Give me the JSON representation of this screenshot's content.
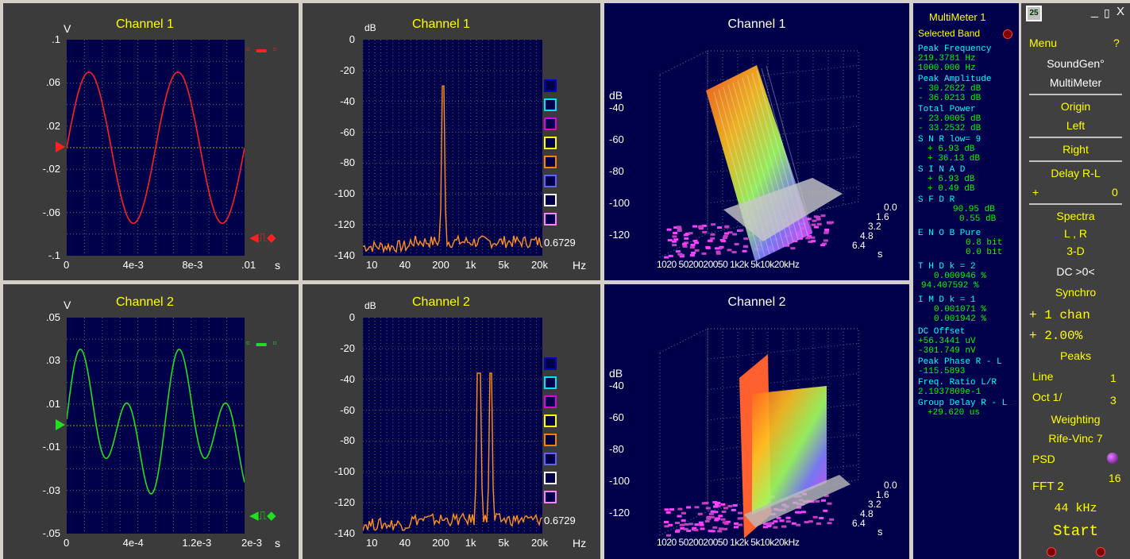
{
  "oscilloscope": [
    {
      "title": "Channel 1",
      "y_unit": "V",
      "x_unit": "s",
      "y_ticks": [
        ".1",
        ".06",
        ".02",
        "-.02",
        "-.06",
        "-.1"
      ],
      "x_ticks": [
        "0",
        "4e-3",
        "8e-3",
        ".01"
      ],
      "color": "#ff2020"
    },
    {
      "title": "Channel 2",
      "y_unit": "V",
      "x_unit": "s",
      "y_ticks": [
        ".05",
        ".03",
        ".01",
        "-.01",
        "-.03",
        "-.05"
      ],
      "x_ticks": [
        "0",
        "4e-4",
        "1.2e-3",
        "2e-3"
      ],
      "color": "#20e020"
    }
  ],
  "spectrum": [
    {
      "title": "Channel 1",
      "y_unit": "dB",
      "x_unit": "Hz",
      "y_ticks": [
        "0",
        "-20",
        "-40",
        "-60",
        "-80",
        "-100",
        "-120",
        "-140"
      ],
      "x_ticks": [
        "10",
        "40",
        "200",
        "1k",
        "5k",
        "20k"
      ],
      "value": "0.6729"
    },
    {
      "title": "Channel 2",
      "y_unit": "dB",
      "x_unit": "Hz",
      "y_ticks": [
        "0",
        "-20",
        "-40",
        "-60",
        "-80",
        "-100",
        "-120",
        "-140"
      ],
      "x_ticks": [
        "10",
        "40",
        "200",
        "1k",
        "5k",
        "20k"
      ],
      "value": "0.6729"
    }
  ],
  "waterfall": [
    {
      "title": "Channel 1",
      "y_unit": "dB",
      "y_ticks": [
        "-40",
        "-60",
        "-80",
        "-100",
        "-120"
      ],
      "x_ticks": "1020 5020020050 1k2k 5k10k20kHz",
      "z_ticks": [
        "0.0",
        "1.6",
        "3.2",
        "4.8",
        "6.4"
      ],
      "z_unit": "s"
    },
    {
      "title": "Channel 2",
      "y_unit": "dB",
      "y_ticks": [
        "-40",
        "-60",
        "-80",
        "-100",
        "-120"
      ],
      "x_ticks": "1020 5020020050 1k2k 5k10k20kHz",
      "z_ticks": [
        "0.0",
        "1.6",
        "3.2",
        "4.8",
        "6.4"
      ],
      "z_unit": "s"
    }
  ],
  "swatch_colors": [
    "#0000c0",
    "#00e0ff",
    "#e000e0",
    "#ffff00",
    "#ff8000",
    "#6060ff",
    "#ffffff",
    "#ff80ff"
  ],
  "multimeter": {
    "title": "MultiMeter 1",
    "selected_band": "Selected Band",
    "peak_freq_label": "Peak Frequency",
    "peak_freq": [
      "219.3781  Hz",
      "1000.000  Hz"
    ],
    "peak_amp_label": "Peak Amplitude",
    "peak_amp": [
      "- 30.2622 dB",
      "- 36.0213 dB"
    ],
    "total_power_label": "Total Power",
    "total_power": [
      "- 23.0005 dB",
      "- 33.2532 dB"
    ],
    "snr_label": "S N R   low=  9",
    "snr": [
      "+  6.93 dB",
      "+ 36.13 dB"
    ],
    "sinad_label": "S I N A D",
    "sinad": [
      "+  6.93 dB",
      "+  0.49 dB"
    ],
    "sfdr_label": "S F D R",
    "sfdr": [
      "90.95 dB",
      "0.55 dB"
    ],
    "enob_label": "E N O B     Pure",
    "enob": [
      "0.8 bit",
      "0.0 bit"
    ],
    "thd_label": "T H D    k =  2",
    "thd": [
      "0.000946 %",
      "94.407592 %"
    ],
    "imd_label": "I M D    k =  1",
    "imd": [
      "0.001071 %",
      "0.001942 %"
    ],
    "dc_label": "DC Offset",
    "dc": [
      "+56.3441 uV",
      "-301.749 nV"
    ],
    "phase_label": "Peak Phase R - L",
    "phase": [
      "-115.5893"
    ],
    "ratio_label": "Freq. Ratio  L/R",
    "ratio": [
      "2.1937809e-1"
    ],
    "delay_label": "Group Delay R - L",
    "delay": [
      "+29.620 us"
    ]
  },
  "controls": {
    "logo": "25",
    "minimize": "_",
    "maximize": "▯",
    "close": "X",
    "menu": "Menu",
    "help": "?",
    "soundgen": "SoundGen°",
    "multimeter": "MultiMeter",
    "origin": "Origin",
    "left": "Left",
    "right": "Right",
    "delay": "Delay  R-L",
    "delay_plus": "+",
    "delay_val": "0",
    "spectra": "Spectra",
    "lr": "L , R",
    "three_d": "3-D",
    "dc": "DC   >0<",
    "synchro": "Synchro",
    "chan": "+ 1 chan",
    "pct": "+ 2.00%",
    "peaks": "Peaks",
    "line": "Line",
    "line_val": "1",
    "oct": "Oct  1/",
    "oct_val": "3",
    "weighting": "Weighting",
    "rife": "Rife-Vinc 7",
    "psd": "PSD",
    "fft": "FFT  2",
    "fft_exp": "16",
    "rate": "44   kHz",
    "start": "Start"
  }
}
